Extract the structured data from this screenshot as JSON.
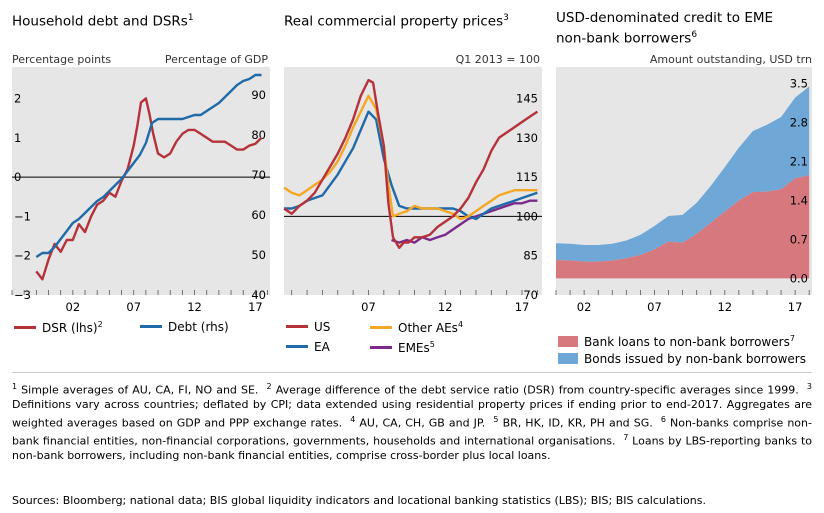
{
  "panels": [
    {
      "title": "Household debt and DSRs",
      "title_sup": "1",
      "left_unit": "Percentage points",
      "right_unit": "Percentage of GDP"
    },
    {
      "title": "Real commercial property prices",
      "title_sup": "3",
      "right_unit": "Q1 2013 = 100"
    },
    {
      "title_line1": "USD-denominated credit to EME",
      "title_line2": "non-bank borrowers",
      "title_sup": "6",
      "right_unit": "Amount outstanding, USD trn"
    }
  ],
  "legends": {
    "p1": [
      {
        "label": "DSR (lhs)",
        "sup": "2",
        "color": "#b5323a"
      },
      {
        "label": "Debt (rhs)",
        "sup": "",
        "color": "#1f6aa8"
      }
    ],
    "p2": [
      {
        "label": "US",
        "sup": "",
        "color": "#b5323a"
      },
      {
        "label": "Other AEs",
        "sup": "4",
        "color": "#f5a623"
      },
      {
        "label": "EA",
        "sup": "",
        "color": "#1f6aa8"
      },
      {
        "label": "EMEs",
        "sup": "5",
        "color": "#7b2a8b"
      }
    ],
    "p3": [
      {
        "label": "Bank loans to non-bank borrowers",
        "sup": "7",
        "color": "#d7787f"
      },
      {
        "label": "Bonds issued by non-bank borrowers",
        "sup": "",
        "color": "#6fa7d6"
      }
    ]
  },
  "footnotes": [
    {
      "n": "1",
      "t": "Simple averages of AU, CA, FI, NO and SE."
    },
    {
      "n": "2",
      "t": "Average difference of the debt service ratio (DSR) from country-specific averages since 1999."
    },
    {
      "n": "3",
      "t": "Definitions vary across countries; deflated by CPI; data extended using residential property prices if ending prior to end-2017. Aggregates are weighted averages based on GDP and PPP exchange rates."
    },
    {
      "n": "4",
      "t": "AU, CA, CH, GB and JP."
    },
    {
      "n": "5",
      "t": "BR, HK, ID, KR, PH and SG."
    },
    {
      "n": "6",
      "t": "Non-banks comprise non-bank financial entities, non-financial corporations, governments, households and international organisations."
    },
    {
      "n": "7",
      "t": "Loans by LBS-reporting banks to non-bank borrowers, including non-bank financial entities, comprise cross-border plus local loans."
    }
  ],
  "sources": "Sources: Bloomberg; national data; BIS global liquidity indicators and locational banking statistics (LBS); BIS; BIS calculations.",
  "chart_data": [
    {
      "type": "line",
      "title": "Household debt and DSRs",
      "left_axis": {
        "label": "Percentage points",
        "range": [
          -3,
          2.8
        ],
        "ticks": [
          -3,
          -2,
          -1,
          0,
          1,
          2
        ]
      },
      "right_axis": {
        "label": "Percentage of GDP",
        "range": [
          40,
          97
        ],
        "ticks": [
          40,
          50,
          60,
          70,
          80,
          90
        ]
      },
      "x_range": [
        1997,
        2018.2
      ],
      "x_ticks": [
        2002,
        2007,
        2012,
        2017
      ],
      "x_tick_labels": [
        "02",
        "07",
        "12",
        "17"
      ],
      "series": [
        {
          "name": "DSR (lhs)",
          "sup": "2",
          "axis": "left",
          "color": "#b5323a",
          "x": [
            1999,
            1999.5,
            2000,
            2000.5,
            2001,
            2001.5,
            2002,
            2002.5,
            2003,
            2003.5,
            2004,
            2004.5,
            2005,
            2005.5,
            2006,
            2006.5,
            2007,
            2007.3,
            2007.6,
            2008,
            2008.3,
            2008.6,
            2009,
            2009.5,
            2010,
            2010.5,
            2011,
            2011.5,
            2012,
            2012.5,
            2013,
            2013.5,
            2014,
            2014.5,
            2015,
            2015.5,
            2016,
            2016.5,
            2017,
            2017.5
          ],
          "y": [
            -2.4,
            -2.6,
            -2.1,
            -1.7,
            -1.9,
            -1.6,
            -1.6,
            -1.2,
            -1.4,
            -1.0,
            -0.7,
            -0.6,
            -0.4,
            -0.5,
            -0.1,
            0.2,
            0.8,
            1.3,
            1.9,
            2.0,
            1.6,
            1.1,
            0.6,
            0.5,
            0.6,
            0.9,
            1.1,
            1.2,
            1.2,
            1.1,
            1.0,
            0.9,
            0.9,
            0.9,
            0.8,
            0.7,
            0.7,
            0.8,
            0.85,
            1.0
          ]
        },
        {
          "name": "Debt (rhs)",
          "sup": "",
          "axis": "right",
          "color": "#1f6aa8",
          "x": [
            1999,
            1999.5,
            2000,
            2000.5,
            2001,
            2001.5,
            2002,
            2002.5,
            2003,
            2003.5,
            2004,
            2004.5,
            2005,
            2005.5,
            2006,
            2006.5,
            2007,
            2007.5,
            2008,
            2008.5,
            2009,
            2009.5,
            2010,
            2010.5,
            2011,
            2011.5,
            2012,
            2012.5,
            2013,
            2013.5,
            2014,
            2014.5,
            2015,
            2015.5,
            2016,
            2016.5,
            2017,
            2017.5
          ],
          "y": [
            49.5,
            50.5,
            50.5,
            52,
            54,
            56,
            58,
            59,
            60.5,
            62,
            63.5,
            64.5,
            66,
            67.5,
            69,
            71,
            73,
            75,
            78,
            83,
            84,
            84,
            84,
            84,
            84,
            84.5,
            85,
            85,
            86,
            87,
            88,
            89.5,
            91,
            92.5,
            93.5,
            94,
            95,
            95
          ]
        }
      ]
    },
    {
      "type": "line",
      "title": "Real commercial property prices",
      "y_axis": {
        "label": "Q1 2013 = 100",
        "range": [
          70,
          157
        ],
        "ticks": [
          70,
          85,
          100,
          115,
          130,
          145
        ]
      },
      "x_range": [
        2001.5,
        2018.3
      ],
      "x_ticks": [
        2007,
        2012,
        2017
      ],
      "x_tick_labels": [
        "07",
        "12",
        "17"
      ],
      "series": [
        {
          "name": "US",
          "sup": "",
          "color": "#b5323a",
          "x": [
            2001.5,
            2002,
            2002.5,
            2003,
            2003.5,
            2004,
            2004.5,
            2005,
            2005.5,
            2006,
            2006.5,
            2007,
            2007.3,
            2007.6,
            2008,
            2008.3,
            2008.6,
            2009,
            2009.3,
            2009.6,
            2010,
            2010.5,
            2011,
            2011.5,
            2012,
            2012.5,
            2013,
            2013.5,
            2014,
            2014.5,
            2015,
            2015.5,
            2016,
            2016.5,
            2017,
            2017.5,
            2018
          ],
          "y": [
            103,
            101,
            104,
            106,
            109,
            114,
            119,
            124,
            130,
            137,
            146,
            152,
            151,
            140,
            127,
            105,
            92,
            88,
            90,
            90,
            92,
            92,
            93,
            96,
            98,
            100,
            103,
            107,
            113,
            118,
            125,
            130,
            132,
            134,
            136,
            138,
            140
          ]
        },
        {
          "name": "Other AEs",
          "sup": "4",
          "color": "#f5a623",
          "x": [
            2001.5,
            2002,
            2002.5,
            2003,
            2003.5,
            2004,
            2004.5,
            2005,
            2005.5,
            2006,
            2006.5,
            2007,
            2007.5,
            2008,
            2008.3,
            2008.6,
            2009,
            2009.5,
            2010,
            2010.5,
            2011,
            2011.5,
            2012,
            2012.5,
            2013,
            2013.5,
            2014,
            2014.5,
            2015,
            2015.5,
            2016,
            2016.5,
            2017,
            2017.5,
            2018
          ],
          "y": [
            111,
            109,
            108,
            110,
            112,
            114,
            117,
            121,
            127,
            134,
            140,
            146,
            141,
            127,
            112,
            100,
            101,
            102,
            104,
            103,
            103,
            103,
            102,
            101,
            99,
            100,
            102,
            104,
            106,
            108,
            109,
            110,
            110,
            110,
            110
          ]
        },
        {
          "name": "EA",
          "sup": "",
          "color": "#1f6aa8",
          "x": [
            2001.5,
            2002,
            2002.5,
            2003,
            2003.5,
            2004,
            2004.5,
            2005,
            2005.5,
            2006,
            2006.5,
            2007,
            2007.5,
            2008,
            2008.5,
            2009,
            2009.5,
            2010,
            2010.5,
            2011,
            2011.5,
            2012,
            2012.5,
            2013,
            2013.5,
            2014,
            2014.5,
            2015,
            2015.5,
            2016,
            2016.5,
            2017,
            2017.5,
            2018
          ],
          "y": [
            103,
            103,
            104,
            106,
            107,
            108,
            112,
            116,
            121,
            126,
            133,
            140,
            137,
            122,
            112,
            104,
            103,
            103,
            103,
            103,
            103,
            103,
            103,
            102,
            100,
            99,
            101,
            103,
            104,
            105,
            106,
            107,
            108,
            109
          ]
        },
        {
          "name": "EMEs",
          "sup": "5",
          "color": "#7b2a8b",
          "x": [
            2008.5,
            2009,
            2009.5,
            2010,
            2010.5,
            2011,
            2011.5,
            2012,
            2012.5,
            2013,
            2013.5,
            2014,
            2014.5,
            2015,
            2015.5,
            2016,
            2016.5,
            2017,
            2017.5,
            2018
          ],
          "y": [
            91,
            90,
            91,
            90,
            92,
            91,
            92,
            93,
            95,
            97,
            99,
            100,
            101,
            102,
            103,
            104,
            105,
            105,
            106,
            106
          ]
        }
      ]
    },
    {
      "type": "area",
      "title": "USD-denominated credit to EME non-bank borrowers",
      "y_axis": {
        "label": "Amount outstanding, USD trn",
        "range": [
          -0.3,
          3.8
        ],
        "ticks": [
          0.0,
          0.7,
          1.4,
          2.1,
          2.8,
          3.5
        ],
        "tick_labels": [
          "0.0",
          "0.7",
          "1.4",
          "2.1",
          "2.8",
          "3.5"
        ]
      },
      "x_range": [
        2000,
        2018.2
      ],
      "x_ticks": [
        2002,
        2007,
        2012,
        2017
      ],
      "x_tick_labels": [
        "02",
        "07",
        "12",
        "17"
      ],
      "stacked": true,
      "series": [
        {
          "name": "Bank loans to non-bank borrowers",
          "sup": "7",
          "color": "#d7787f",
          "x": [
            2000,
            2001,
            2002,
            2003,
            2004,
            2005,
            2006,
            2007,
            2008,
            2009,
            2010,
            2011,
            2012,
            2013,
            2014,
            2015,
            2016,
            2017,
            2018
          ],
          "y": [
            0.33,
            0.32,
            0.3,
            0.3,
            0.32,
            0.36,
            0.42,
            0.52,
            0.66,
            0.64,
            0.8,
            1.0,
            1.2,
            1.4,
            1.55,
            1.56,
            1.6,
            1.8,
            1.85
          ]
        },
        {
          "name": "Bonds issued by non-bank borrowers",
          "sup": "",
          "color": "#6fa7d6",
          "x": [
            2000,
            2001,
            2002,
            2003,
            2004,
            2005,
            2006,
            2007,
            2008,
            2009,
            2010,
            2011,
            2012,
            2013,
            2014,
            2015,
            2016,
            2017,
            2018
          ],
          "y": [
            0.3,
            0.3,
            0.3,
            0.3,
            0.3,
            0.32,
            0.36,
            0.42,
            0.46,
            0.5,
            0.56,
            0.66,
            0.8,
            0.95,
            1.1,
            1.2,
            1.3,
            1.45,
            1.6
          ]
        }
      ]
    }
  ]
}
